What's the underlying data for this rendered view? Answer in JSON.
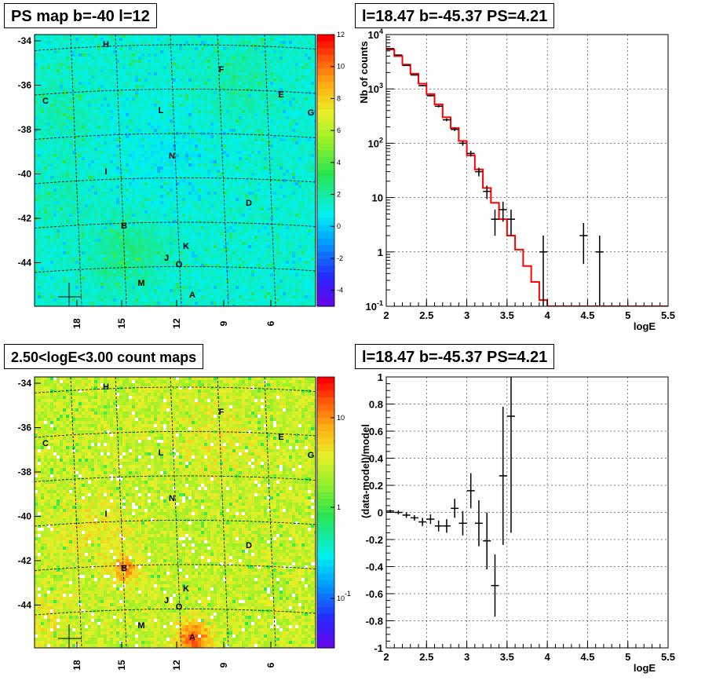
{
  "chart_data": [
    {
      "type": "heatmap",
      "title": "PS map b=-40 l=12",
      "y_ticks": [
        "-34",
        "-36",
        "-38",
        "-40",
        "-42",
        "-44"
      ],
      "x_ticks": [
        "18",
        "15",
        "12",
        "9",
        "6"
      ],
      "colorbar_ticks": [
        "12",
        "10",
        "8",
        "6",
        "4",
        "2",
        "0",
        "-2",
        "-4"
      ],
      "zlim": [
        -5,
        12
      ],
      "base_level": 1.5,
      "sources": [
        "H",
        "F",
        "C",
        "E",
        "G",
        "L",
        "N",
        "I",
        "D",
        "B",
        "K",
        "J",
        "O",
        "M",
        "A"
      ]
    },
    {
      "type": "line",
      "title": "l=18.47 b=-45.37 PS=4.21",
      "xlabel": "logE",
      "ylabel": "Nb of counts",
      "xlim": [
        2,
        5.5
      ],
      "ylim": [
        0.1,
        10000
      ],
      "yscale": "log",
      "x_ticks": [
        "2",
        "2.5",
        "3",
        "3.5",
        "4",
        "4.5",
        "5",
        "5.5"
      ],
      "y_ticks": [
        "10^4",
        "10^3",
        "10^2",
        "10",
        "1",
        "10^-1"
      ],
      "grid": true,
      "data_points": [
        {
          "x": 2.05,
          "y": 5500,
          "err_lo": 5430,
          "err_hi": 5570
        },
        {
          "x": 2.15,
          "y": 4200,
          "err_lo": 4135,
          "err_hi": 4265
        },
        {
          "x": 2.25,
          "y": 2700,
          "err_lo": 2650,
          "err_hi": 2750
        },
        {
          "x": 2.35,
          "y": 1800,
          "err_lo": 1760,
          "err_hi": 1840
        },
        {
          "x": 2.45,
          "y": 1150,
          "err_lo": 1115,
          "err_hi": 1185
        },
        {
          "x": 2.55,
          "y": 750,
          "err_lo": 723,
          "err_hi": 777
        },
        {
          "x": 2.65,
          "y": 480,
          "err_lo": 458,
          "err_hi": 502
        },
        {
          "x": 2.75,
          "y": 270,
          "err_lo": 254,
          "err_hi": 286
        },
        {
          "x": 2.85,
          "y": 180,
          "err_lo": 167,
          "err_hi": 193
        },
        {
          "x": 2.95,
          "y": 100,
          "err_lo": 90,
          "err_hi": 110
        },
        {
          "x": 3.05,
          "y": 65,
          "err_lo": 57,
          "err_hi": 73
        },
        {
          "x": 3.15,
          "y": 30,
          "err_lo": 24.5,
          "err_hi": 35.5
        },
        {
          "x": 3.25,
          "y": 13,
          "err_lo": 9.4,
          "err_hi": 16.6
        },
        {
          "x": 3.35,
          "y": 4,
          "err_lo": 2,
          "err_hi": 6
        },
        {
          "x": 3.45,
          "y": 6,
          "err_lo": 3.6,
          "err_hi": 8.4
        },
        {
          "x": 3.55,
          "y": 4,
          "err_lo": 2,
          "err_hi": 6
        },
        {
          "x": 3.95,
          "y": 1,
          "err_lo": 0.1,
          "err_hi": 2
        },
        {
          "x": 4.45,
          "y": 2,
          "err_lo": 0.6,
          "err_hi": 3.4
        },
        {
          "x": 4.65,
          "y": 1,
          "err_lo": 0.1,
          "err_hi": 2
        }
      ],
      "model_steps": [
        {
          "x0": 2.0,
          "x1": 2.1,
          "y": 5300
        },
        {
          "x0": 2.1,
          "x1": 2.2,
          "y": 4000
        },
        {
          "x0": 2.2,
          "x1": 2.3,
          "y": 2800
        },
        {
          "x0": 2.3,
          "x1": 2.4,
          "y": 1900
        },
        {
          "x0": 2.4,
          "x1": 2.5,
          "y": 1250
        },
        {
          "x0": 2.5,
          "x1": 2.6,
          "y": 800
        },
        {
          "x0": 2.6,
          "x1": 2.7,
          "y": 520
        },
        {
          "x0": 2.7,
          "x1": 2.8,
          "y": 300
        },
        {
          "x0": 2.8,
          "x1": 2.9,
          "y": 190
        },
        {
          "x0": 2.9,
          "x1": 3.0,
          "y": 110
        },
        {
          "x0": 3.0,
          "x1": 3.1,
          "y": 60
        },
        {
          "x0": 3.1,
          "x1": 3.2,
          "y": 33
        },
        {
          "x0": 3.2,
          "x1": 3.3,
          "y": 15
        },
        {
          "x0": 3.3,
          "x1": 3.4,
          "y": 8
        },
        {
          "x0": 3.4,
          "x1": 3.5,
          "y": 4
        },
        {
          "x0": 3.5,
          "x1": 3.6,
          "y": 2
        },
        {
          "x0": 3.6,
          "x1": 3.7,
          "y": 1.1
        },
        {
          "x0": 3.7,
          "x1": 3.8,
          "y": 0.55
        },
        {
          "x0": 3.8,
          "x1": 3.9,
          "y": 0.28
        },
        {
          "x0": 3.9,
          "x1": 4.0,
          "y": 0.13
        },
        {
          "x0": 4.0,
          "x1": 5.5,
          "y": 0.1
        }
      ],
      "model_color": "#ff0000"
    },
    {
      "type": "heatmap",
      "title": "2.50<logE<3.00 count maps",
      "y_ticks": [
        "-34",
        "-36",
        "-38",
        "-40",
        "-42",
        "-44"
      ],
      "x_ticks": [
        "18",
        "15",
        "12",
        "9",
        "6"
      ],
      "colorbar_ticks": [
        "10",
        "1",
        "10^-1"
      ],
      "zscale": "log",
      "sources": [
        "H",
        "F",
        "C",
        "E",
        "G",
        "L",
        "N",
        "I",
        "D",
        "B",
        "K",
        "J",
        "O",
        "M",
        "A"
      ]
    },
    {
      "type": "scatter",
      "title": "l=18.47 b=-45.37 PS=4.21",
      "xlabel": "logE",
      "ylabel": "(data-model)/model",
      "xlim": [
        2,
        5.5
      ],
      "ylim": [
        -1,
        1
      ],
      "x_ticks": [
        "2",
        "2.5",
        "3",
        "3.5",
        "4",
        "4.5",
        "5",
        "5.5"
      ],
      "y_ticks": [
        "1",
        "0.8",
        "0.6",
        "0.4",
        "0.2",
        "0",
        "-0.2",
        "-0.4",
        "-0.6",
        "-0.8",
        "-1"
      ],
      "grid": true,
      "data_points": [
        {
          "x": 2.05,
          "y": 0.01,
          "err": 0.01
        },
        {
          "x": 2.15,
          "y": 0.0,
          "err": 0.015
        },
        {
          "x": 2.25,
          "y": -0.02,
          "err": 0.02
        },
        {
          "x": 2.35,
          "y": -0.04,
          "err": 0.02
        },
        {
          "x": 2.45,
          "y": -0.07,
          "err": 0.03
        },
        {
          "x": 2.55,
          "y": -0.05,
          "err": 0.035
        },
        {
          "x": 2.65,
          "y": -0.1,
          "err": 0.04
        },
        {
          "x": 2.75,
          "y": -0.1,
          "err": 0.05
        },
        {
          "x": 2.85,
          "y": 0.03,
          "err": 0.07
        },
        {
          "x": 2.95,
          "y": -0.08,
          "err": 0.09
        },
        {
          "x": 3.05,
          "y": 0.16,
          "err": 0.13
        },
        {
          "x": 3.15,
          "y": -0.08,
          "err": 0.17
        },
        {
          "x": 3.25,
          "y": -0.21,
          "err": 0.21
        },
        {
          "x": 3.35,
          "y": -0.54,
          "err": 0.23
        },
        {
          "x": 3.45,
          "y": 0.27,
          "err": 0.51
        },
        {
          "x": 3.55,
          "y": 0.71,
          "err": 0.86
        }
      ]
    }
  ]
}
